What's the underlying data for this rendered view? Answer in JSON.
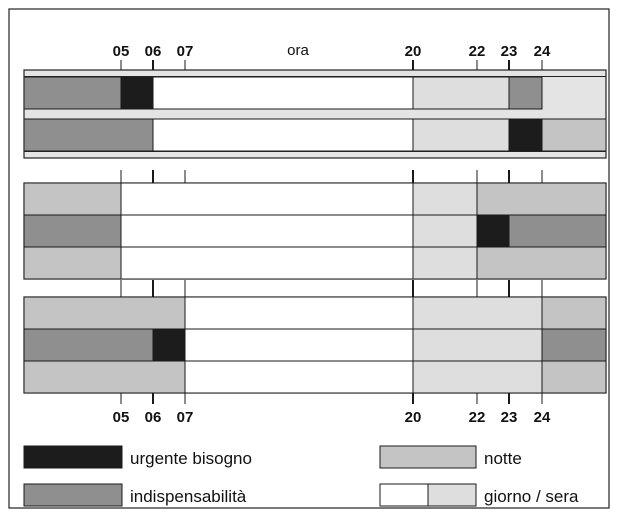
{
  "title": "ora",
  "hours": [
    5,
    6,
    7,
    20,
    22,
    23,
    24
  ],
  "hour_labels": [
    "05",
    "06",
    "07",
    "20",
    "22",
    "23",
    "24"
  ],
  "colors": {
    "urgent": "#1c1c1c",
    "indispensable": "#8f8f8f",
    "night": "#c4c4c4",
    "evening": "#dedede",
    "day": "#ffffff",
    "line": "#1a1a1a",
    "frame": "#222222"
  },
  "groups": [
    {
      "style": "framed",
      "rows": [
        [
          [
            0,
            5,
            "indispensable"
          ],
          [
            5,
            6,
            "urgent"
          ],
          [
            6,
            20,
            "day"
          ],
          [
            20,
            23,
            "evening"
          ],
          [
            23,
            24,
            "indispensable"
          ]
        ],
        [
          [
            0,
            6,
            "indispensable"
          ],
          [
            6,
            20,
            "day"
          ],
          [
            20,
            23,
            "evening"
          ],
          [
            23,
            24,
            "urgent"
          ],
          [
            24,
            26,
            "night"
          ]
        ]
      ]
    },
    {
      "style": "plain",
      "rows": [
        [
          [
            0,
            5,
            "night"
          ],
          [
            5,
            20,
            "day"
          ],
          [
            20,
            22,
            "evening"
          ],
          [
            22,
            26,
            "night"
          ]
        ],
        [
          [
            0,
            5,
            "indispensable"
          ],
          [
            5,
            20,
            "day"
          ],
          [
            20,
            22,
            "evening"
          ],
          [
            22,
            23,
            "urgent"
          ],
          [
            23,
            26,
            "indispensable"
          ]
        ],
        [
          [
            0,
            5,
            "night"
          ],
          [
            5,
            20,
            "day"
          ],
          [
            20,
            22,
            "evening"
          ],
          [
            22,
            26,
            "night"
          ]
        ]
      ]
    },
    {
      "style": "plain",
      "rows": [
        [
          [
            0,
            7,
            "night"
          ],
          [
            7,
            20,
            "day"
          ],
          [
            20,
            24,
            "evening"
          ],
          [
            24,
            26,
            "night"
          ]
        ],
        [
          [
            0,
            6,
            "indispensable"
          ],
          [
            6,
            7,
            "urgent"
          ],
          [
            7,
            20,
            "day"
          ],
          [
            20,
            24,
            "evening"
          ],
          [
            24,
            26,
            "indispensable"
          ]
        ],
        [
          [
            0,
            7,
            "night"
          ],
          [
            7,
            20,
            "day"
          ],
          [
            20,
            24,
            "evening"
          ],
          [
            24,
            26,
            "night"
          ]
        ]
      ]
    }
  ],
  "legend": {
    "urgent": "urgente bisogno",
    "indispensable": "indispensabilità",
    "night": "notte",
    "day_evening": "giorno / sera"
  }
}
